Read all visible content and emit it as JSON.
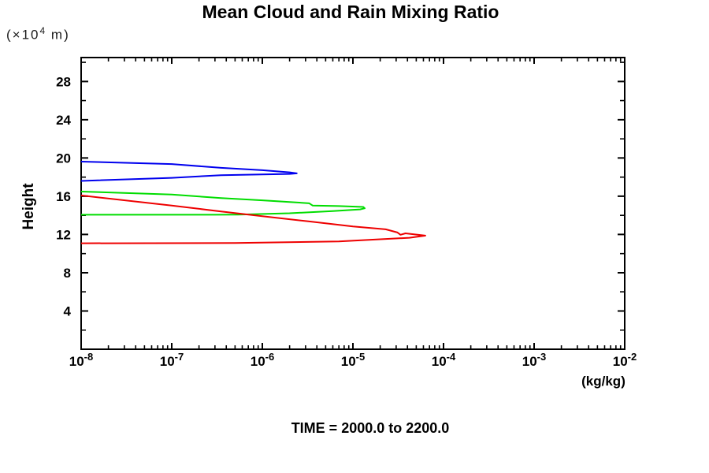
{
  "chart_data": {
    "type": "line",
    "title": "Mean Cloud and Rain Mixing Ratio",
    "annotation": "TIME = 2000.0 to 2200.0",
    "x_axis": {
      "scale": "log",
      "unit_label": "(kg/kg)",
      "lim": [
        1e-08,
        0.01
      ],
      "decade_exponents": [
        -8,
        -7,
        -6,
        -5,
        -4,
        -3,
        -2
      ]
    },
    "y_axis": {
      "label": "Height",
      "unit": {
        "prefix": "(×10",
        "exponent": "4",
        "suffix": " m)"
      },
      "lim": [
        0,
        30.5
      ],
      "major_ticks": [
        4,
        8,
        12,
        16,
        20,
        24,
        28
      ],
      "minor_ticks": [
        2,
        6,
        10,
        14,
        18,
        22,
        26,
        30
      ]
    },
    "frame_color": "#000000",
    "series": [
      {
        "name": "blue-curve",
        "color": "#0000ee",
        "points_value_height": [
          [
            1e-08,
            19.62
          ],
          [
            1e-07,
            19.36
          ],
          [
            3.5e-07,
            18.97
          ],
          [
            1e-06,
            18.72
          ],
          [
            2e-06,
            18.5
          ],
          [
            2.4e-06,
            18.39
          ],
          [
            2e-06,
            18.33
          ],
          [
            1e-06,
            18.28
          ],
          [
            3.5e-07,
            18.2
          ],
          [
            1e-07,
            17.92
          ],
          [
            1e-08,
            17.6
          ]
        ]
      },
      {
        "name": "green-curve",
        "color": "#00dd00",
        "points_value_height": [
          [
            1e-08,
            16.49
          ],
          [
            1e-07,
            16.18
          ],
          [
            3.5e-07,
            15.8
          ],
          [
            1e-06,
            15.57
          ],
          [
            2e-06,
            15.4
          ],
          [
            3.3e-06,
            15.26
          ],
          [
            3.6e-06,
            15.02
          ],
          [
            7e-06,
            14.97
          ],
          [
            1.3e-05,
            14.88
          ],
          [
            1.35e-05,
            14.74
          ],
          [
            1.2e-05,
            14.62
          ],
          [
            6e-06,
            14.45
          ],
          [
            2e-06,
            14.22
          ],
          [
            5.4e-07,
            14.08
          ],
          [
            3e-07,
            14.06
          ],
          [
            1e-08,
            14.06
          ]
        ]
      },
      {
        "name": "red-curve",
        "color": "#ee0000",
        "points_value_height": [
          [
            1e-08,
            16.08
          ],
          [
            1e-07,
            15.02
          ],
          [
            3.5e-07,
            14.41
          ],
          [
            1e-06,
            13.91
          ],
          [
            3.3e-06,
            13.36
          ],
          [
            1e-05,
            12.84
          ],
          [
            2.3e-05,
            12.54
          ],
          [
            3.1e-05,
            12.21
          ],
          [
            3.35e-05,
            11.97
          ],
          [
            3.8e-05,
            12.12
          ],
          [
            6.3e-05,
            11.88
          ],
          [
            4.2e-05,
            11.66
          ],
          [
            1.5e-05,
            11.44
          ],
          [
            7e-06,
            11.28
          ],
          [
            5e-07,
            11.1
          ],
          [
            1e-08,
            11.08
          ]
        ]
      }
    ]
  }
}
